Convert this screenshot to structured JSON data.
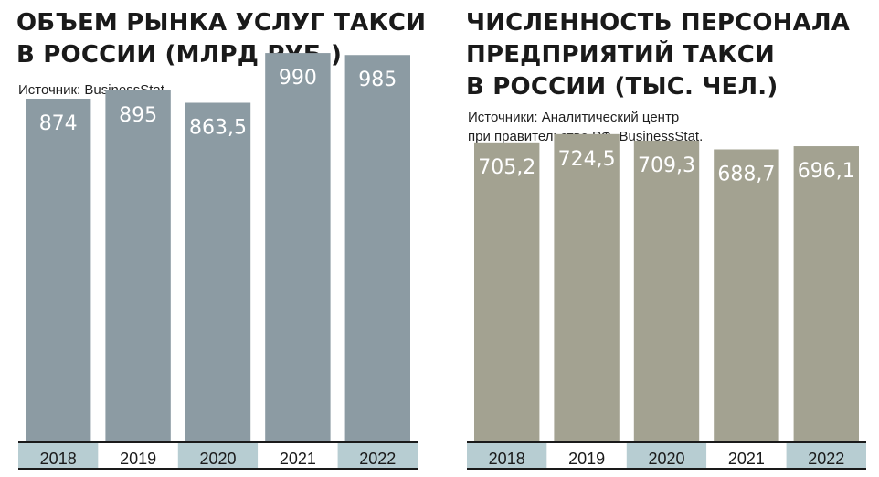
{
  "chart_data": [
    {
      "type": "bar",
      "title_lines": [
        "ОБЪЕМ РЫНКА УСЛУГ ТАКСИ",
        "В РОССИИ (МЛРД РУБ.)"
      ],
      "source_lines": [
        "Источник: BusinessStat."
      ],
      "categories": [
        "2018",
        "2019",
        "2020",
        "2021",
        "2022"
      ],
      "values": [
        874,
        895,
        863.5,
        990,
        985
      ],
      "value_labels": [
        "874",
        "895",
        "863,5",
        "990",
        "985"
      ],
      "ylim": [
        0,
        1125
      ],
      "grid": false,
      "bar_color": "#8c9ba3",
      "axis_band_colors": [
        "#b7cdd2",
        "#ffffff",
        "#b7cdd2",
        "#ffffff",
        "#b7cdd2"
      ]
    },
    {
      "type": "bar",
      "title_lines": [
        "ЧИСЛЕННОСТЬ ПЕРСОНАЛА",
        "ПРЕДПРИЯТИЙ ТАКСИ",
        "В РОССИИ (ТЫС. ЧЕЛ.)"
      ],
      "source_lines": [
        "Источники: Аналитический центр",
        "при правительстве РФ, BusinessStat."
      ],
      "categories": [
        "2018",
        "2019",
        "2020",
        "2021",
        "2022"
      ],
      "values": [
        705.2,
        724.5,
        709.3,
        688.7,
        696.1
      ],
      "value_labels": [
        "705,2",
        "724,5",
        "709,3",
        "688,7",
        "696,1"
      ],
      "ylim": [
        0,
        1040
      ],
      "grid": false,
      "bar_color": "#a3a291",
      "axis_band_colors": [
        "#b7cdd2",
        "#ffffff",
        "#b7cdd2",
        "#ffffff",
        "#b7cdd2"
      ]
    }
  ]
}
